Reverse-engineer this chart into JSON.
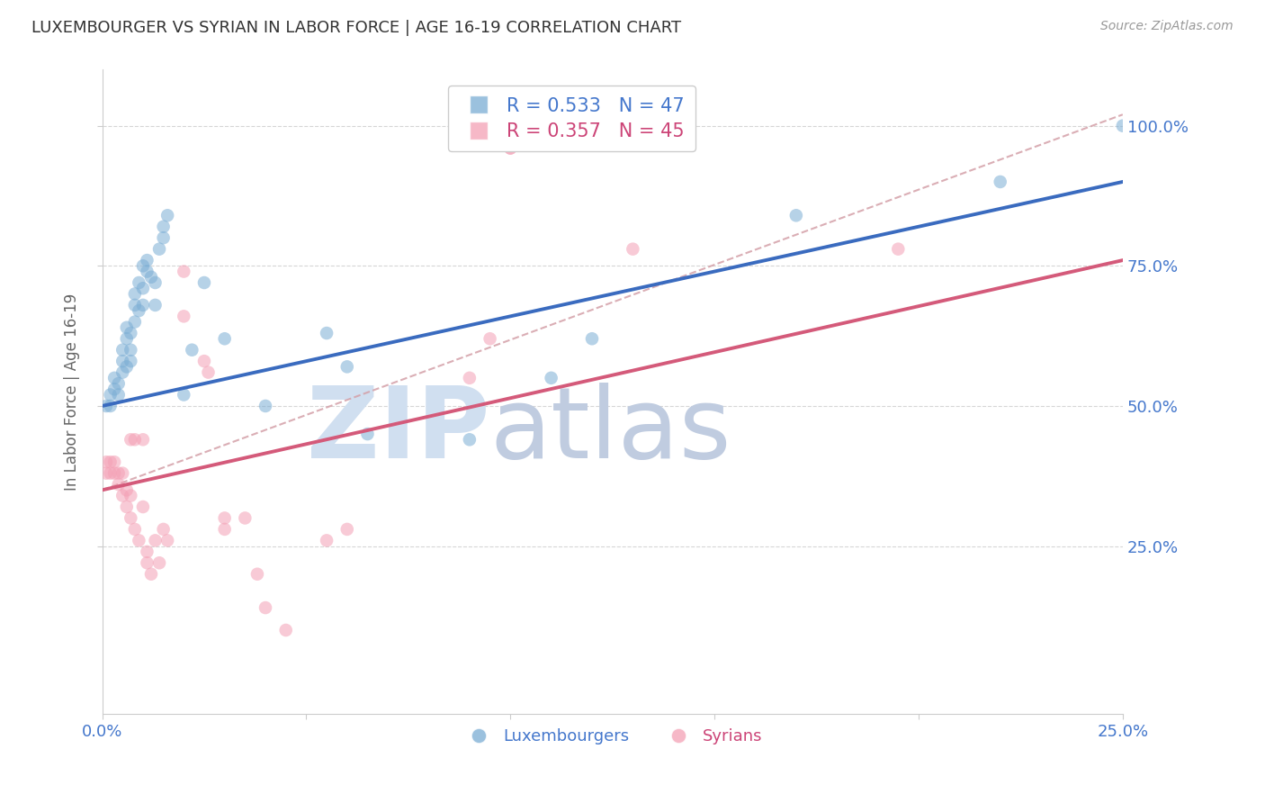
{
  "title": "LUXEMBOURGER VS SYRIAN IN LABOR FORCE | AGE 16-19 CORRELATION CHART",
  "source": "Source: ZipAtlas.com",
  "ylabel": "In Labor Force | Age 16-19",
  "xlim": [
    0.0,
    0.25
  ],
  "ylim": [
    -0.05,
    1.1
  ],
  "right_ytick_labels": [
    "25.0%",
    "50.0%",
    "75.0%",
    "100.0%"
  ],
  "legend_blue_r": "R = 0.533",
  "legend_blue_n": "N = 47",
  "legend_pink_r": "R = 0.357",
  "legend_pink_n": "N = 45",
  "blue_color": "#7aadd4",
  "pink_color": "#f4a0b5",
  "blue_line_color": "#3a6bbf",
  "pink_line_color": "#d45a7a",
  "dashed_line_color": "#d4a0a8",
  "watermark_zip_color": "#d0dff0",
  "watermark_atlas_color": "#c0cce0",
  "blue_scatter": [
    [
      0.001,
      0.5
    ],
    [
      0.002,
      0.5
    ],
    [
      0.002,
      0.52
    ],
    [
      0.003,
      0.53
    ],
    [
      0.003,
      0.55
    ],
    [
      0.004,
      0.54
    ],
    [
      0.004,
      0.52
    ],
    [
      0.005,
      0.56
    ],
    [
      0.005,
      0.58
    ],
    [
      0.005,
      0.6
    ],
    [
      0.006,
      0.57
    ],
    [
      0.006,
      0.62
    ],
    [
      0.006,
      0.64
    ],
    [
      0.007,
      0.6
    ],
    [
      0.007,
      0.58
    ],
    [
      0.007,
      0.63
    ],
    [
      0.008,
      0.65
    ],
    [
      0.008,
      0.68
    ],
    [
      0.008,
      0.7
    ],
    [
      0.009,
      0.67
    ],
    [
      0.009,
      0.72
    ],
    [
      0.01,
      0.75
    ],
    [
      0.01,
      0.71
    ],
    [
      0.01,
      0.68
    ],
    [
      0.011,
      0.74
    ],
    [
      0.011,
      0.76
    ],
    [
      0.012,
      0.73
    ],
    [
      0.013,
      0.72
    ],
    [
      0.013,
      0.68
    ],
    [
      0.014,
      0.78
    ],
    [
      0.015,
      0.8
    ],
    [
      0.015,
      0.82
    ],
    [
      0.016,
      0.84
    ],
    [
      0.02,
      0.52
    ],
    [
      0.022,
      0.6
    ],
    [
      0.025,
      0.72
    ],
    [
      0.03,
      0.62
    ],
    [
      0.04,
      0.5
    ],
    [
      0.055,
      0.63
    ],
    [
      0.06,
      0.57
    ],
    [
      0.065,
      0.45
    ],
    [
      0.09,
      0.44
    ],
    [
      0.11,
      0.55
    ],
    [
      0.12,
      0.62
    ],
    [
      0.17,
      0.84
    ],
    [
      0.22,
      0.9
    ],
    [
      0.25,
      1.0
    ]
  ],
  "pink_scatter": [
    [
      0.001,
      0.38
    ],
    [
      0.001,
      0.4
    ],
    [
      0.002,
      0.38
    ],
    [
      0.002,
      0.4
    ],
    [
      0.003,
      0.38
    ],
    [
      0.003,
      0.4
    ],
    [
      0.004,
      0.36
    ],
    [
      0.004,
      0.38
    ],
    [
      0.005,
      0.34
    ],
    [
      0.005,
      0.38
    ],
    [
      0.006,
      0.32
    ],
    [
      0.006,
      0.35
    ],
    [
      0.007,
      0.3
    ],
    [
      0.007,
      0.34
    ],
    [
      0.007,
      0.44
    ],
    [
      0.008,
      0.28
    ],
    [
      0.008,
      0.44
    ],
    [
      0.009,
      0.26
    ],
    [
      0.01,
      0.32
    ],
    [
      0.01,
      0.44
    ],
    [
      0.011,
      0.24
    ],
    [
      0.011,
      0.22
    ],
    [
      0.012,
      0.2
    ],
    [
      0.013,
      0.26
    ],
    [
      0.014,
      0.22
    ],
    [
      0.015,
      0.28
    ],
    [
      0.016,
      0.26
    ],
    [
      0.02,
      0.74
    ],
    [
      0.02,
      0.66
    ],
    [
      0.025,
      0.58
    ],
    [
      0.026,
      0.56
    ],
    [
      0.03,
      0.3
    ],
    [
      0.03,
      0.28
    ],
    [
      0.035,
      0.3
    ],
    [
      0.038,
      0.2
    ],
    [
      0.04,
      0.14
    ],
    [
      0.045,
      0.1
    ],
    [
      0.055,
      0.26
    ],
    [
      0.06,
      0.28
    ],
    [
      0.09,
      0.55
    ],
    [
      0.095,
      0.62
    ],
    [
      0.1,
      0.96
    ],
    [
      0.1,
      0.96
    ],
    [
      0.13,
      0.78
    ],
    [
      0.195,
      0.78
    ]
  ],
  "blue_line_x": [
    0.0,
    0.25
  ],
  "blue_line_y": [
    0.5,
    0.9
  ],
  "pink_line_x": [
    0.0,
    0.25
  ],
  "pink_line_y": [
    0.35,
    0.76
  ],
  "dashed_line_x": [
    0.0,
    0.25
  ],
  "dashed_line_y": [
    0.35,
    1.02
  ]
}
